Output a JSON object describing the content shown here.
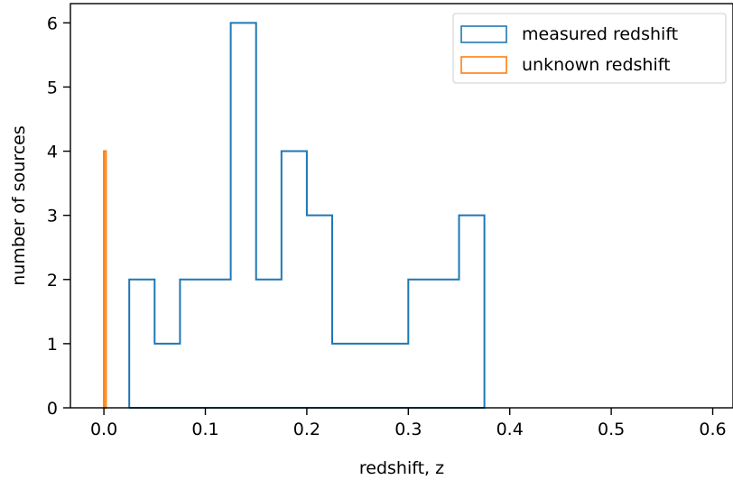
{
  "chart_data": {
    "type": "histogram",
    "xlabel": "redshift, z",
    "ylabel": "number of sources",
    "xlim": [
      -0.033,
      0.62
    ],
    "ylim": [
      0,
      6.3
    ],
    "x_ticks": [
      0.0,
      0.1,
      0.2,
      0.3,
      0.4,
      0.5,
      0.6
    ],
    "x_tick_labels": [
      "0.0",
      "0.1",
      "0.2",
      "0.3",
      "0.4",
      "0.5",
      "0.6"
    ],
    "y_ticks": [
      0,
      1,
      2,
      3,
      4,
      5,
      6
    ],
    "y_tick_labels": [
      "0",
      "1",
      "2",
      "3",
      "4",
      "5",
      "6"
    ],
    "grid": false,
    "legend_position": "top-right",
    "series": [
      {
        "name": "measured redshift",
        "color": "#1f77b4",
        "histtype": "step",
        "bin_edges": [
          0.025,
          0.05,
          0.075,
          0.1,
          0.125,
          0.15,
          0.175,
          0.2,
          0.225,
          0.25,
          0.275,
          0.3,
          0.325,
          0.35,
          0.375
        ],
        "counts": [
          2,
          1,
          2,
          2,
          6,
          2,
          4,
          3,
          1,
          1,
          1,
          2,
          2,
          3
        ]
      },
      {
        "name": "unknown redshift",
        "color": "#ff7f0e",
        "histtype": "step",
        "bin_edges": [
          0.0,
          0.002
        ],
        "counts": [
          4
        ]
      }
    ]
  }
}
